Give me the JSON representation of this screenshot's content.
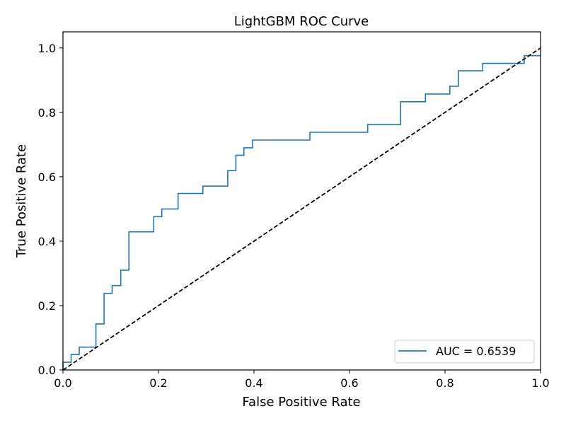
{
  "chart_data": {
    "type": "line",
    "title": "LightGBM ROC Curve",
    "xlabel": "False Positive Rate",
    "ylabel": "True Positive Rate",
    "xlim": [
      0.0,
      1.0
    ],
    "ylim": [
      0.0,
      1.05
    ],
    "xticks": [
      "0.0",
      "0.2",
      "0.4",
      "0.6",
      "0.8",
      "1.0"
    ],
    "yticks": [
      "0.0",
      "0.2",
      "0.4",
      "0.6",
      "0.8",
      "1.0"
    ],
    "grid": false,
    "legend": {
      "location": "lower-right",
      "entries": [
        "AUC = 0.6539"
      ]
    },
    "series": [
      {
        "name": "AUC = 0.6539",
        "color": "#1f77b4",
        "style": "step",
        "x": [
          0.0,
          0.0,
          0.017,
          0.017,
          0.034,
          0.034,
          0.069,
          0.069,
          0.086,
          0.086,
          0.103,
          0.103,
          0.121,
          0.121,
          0.138,
          0.138,
          0.19,
          0.19,
          0.207,
          0.207,
          0.241,
          0.241,
          0.293,
          0.293,
          0.345,
          0.345,
          0.362,
          0.362,
          0.379,
          0.379,
          0.397,
          0.397,
          0.517,
          0.517,
          0.638,
          0.638,
          0.707,
          0.707,
          0.759,
          0.759,
          0.81,
          0.81,
          0.828,
          0.828,
          0.879,
          0.879,
          0.966,
          0.966,
          1.0
        ],
        "y": [
          0.0,
          0.024,
          0.024,
          0.048,
          0.048,
          0.071,
          0.071,
          0.143,
          0.143,
          0.238,
          0.238,
          0.262,
          0.262,
          0.31,
          0.31,
          0.429,
          0.429,
          0.476,
          0.476,
          0.5,
          0.5,
          0.548,
          0.548,
          0.571,
          0.571,
          0.619,
          0.619,
          0.667,
          0.667,
          0.69,
          0.69,
          0.714,
          0.714,
          0.738,
          0.738,
          0.762,
          0.762,
          0.833,
          0.833,
          0.857,
          0.857,
          0.881,
          0.881,
          0.929,
          0.929,
          0.952,
          0.952,
          0.976,
          0.976
        ]
      },
      {
        "name": "",
        "color": "#000000",
        "style": "dashed",
        "x": [
          0.0,
          1.0
        ],
        "y": [
          0.0,
          1.0
        ]
      }
    ]
  }
}
